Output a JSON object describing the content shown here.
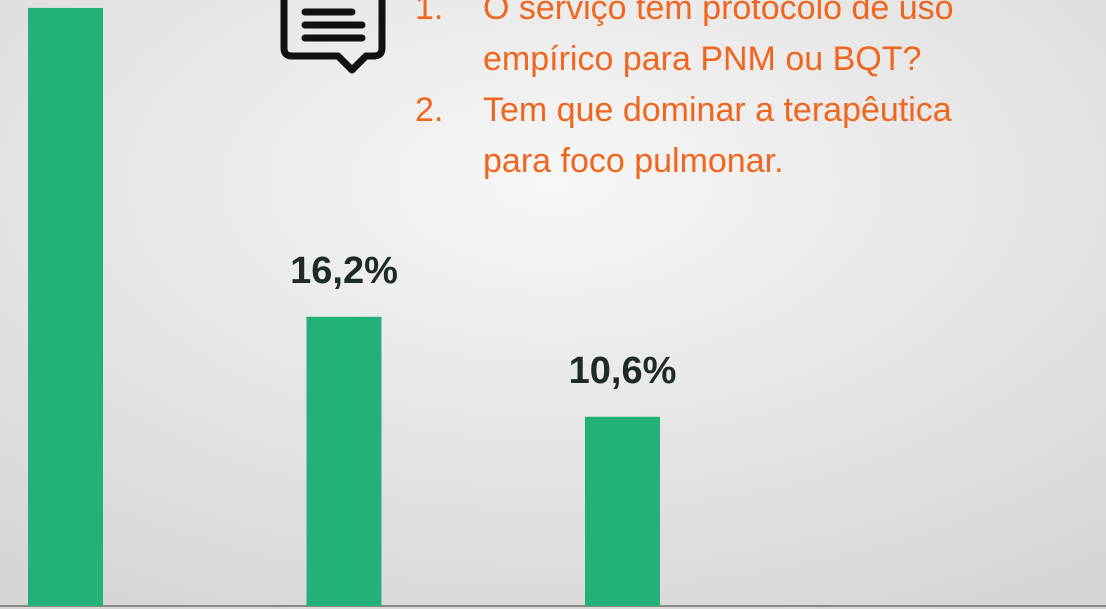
{
  "chart_data": {
    "type": "bar",
    "values": [
      33.5,
      16.2,
      10.6
    ],
    "value_labels": [
      null,
      "16,2%",
      "10,6%"
    ],
    "color": "#21b179",
    "ylim": [
      0,
      34
    ],
    "annotations": [
      {
        "number": "1.",
        "lines": [
          "O serviço tem protocolo de uso",
          "empírico para PNM ou BQT?"
        ]
      },
      {
        "number": "2.",
        "lines": [
          "Tem que dominar a terapêutica",
          "para foco pulmonar."
        ]
      }
    ]
  }
}
